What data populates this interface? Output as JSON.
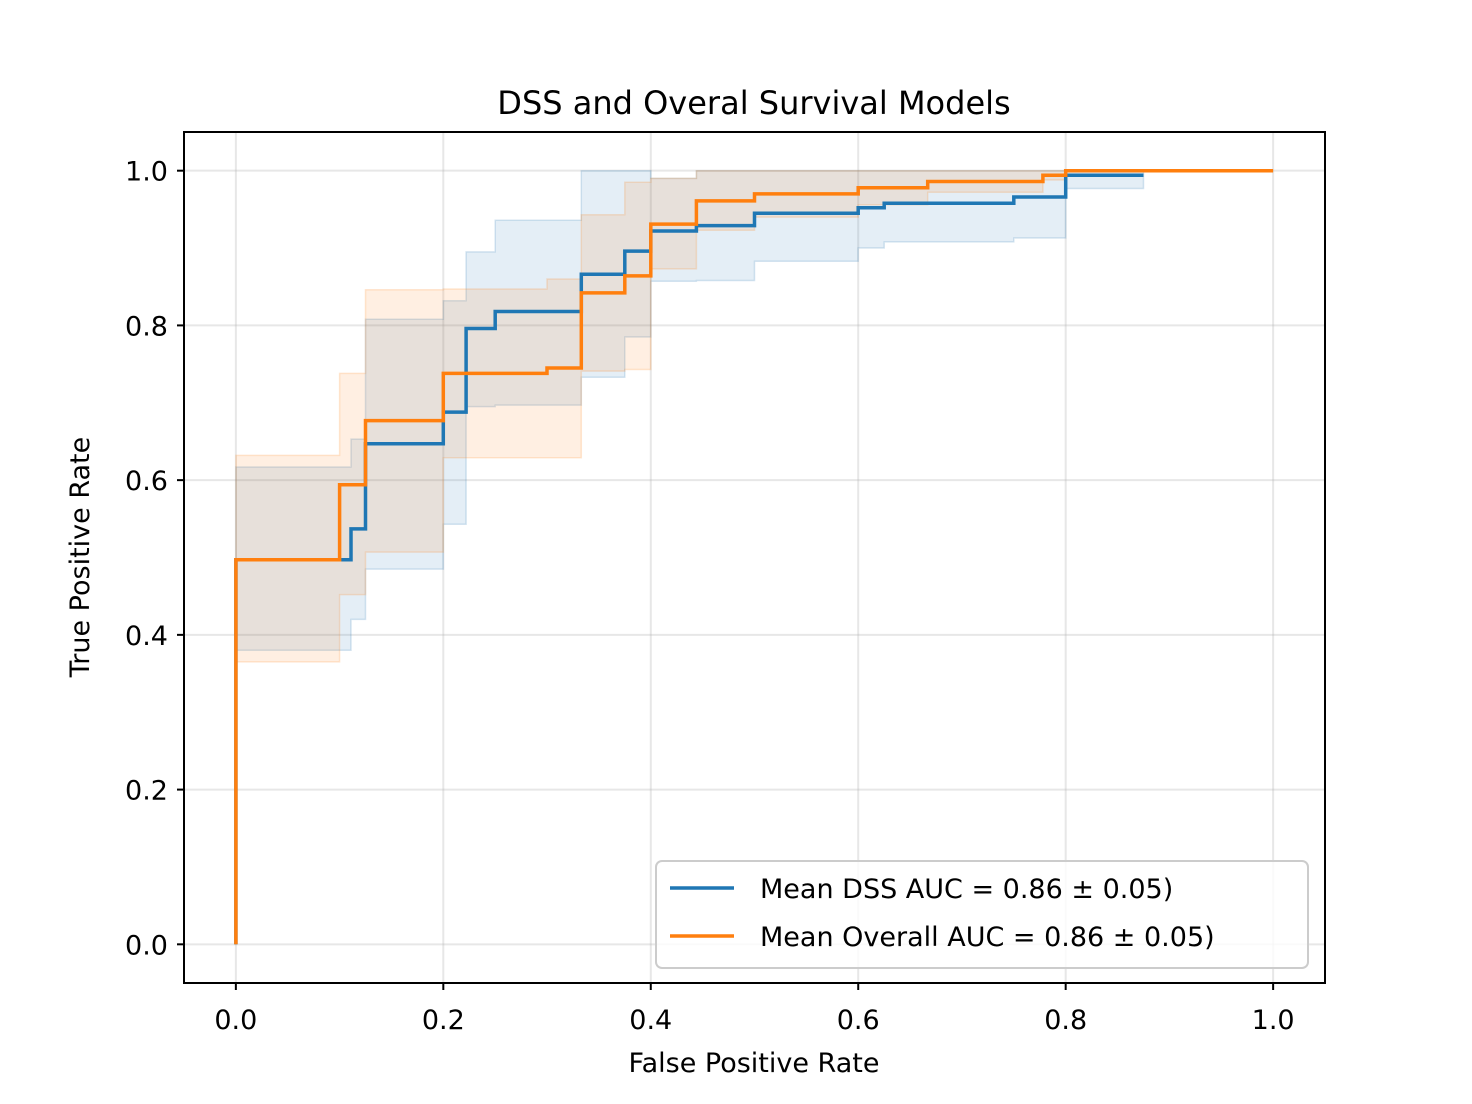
{
  "chart_data": {
    "type": "line",
    "title": "DSS and Overal Survival Models",
    "xlabel": "False Positive Rate",
    "ylabel": "True Positive Rate",
    "xlim": [
      -0.05,
      1.05
    ],
    "ylim": [
      -0.05,
      1.05
    ],
    "xticks": [
      0.0,
      0.2,
      0.4,
      0.6,
      0.8,
      1.0
    ],
    "xtick_labels": [
      "0.0",
      "0.2",
      "0.4",
      "0.6",
      "0.8",
      "1.0"
    ],
    "yticks": [
      0.0,
      0.2,
      0.4,
      0.6,
      0.8,
      1.0
    ],
    "ytick_labels": [
      "0.0",
      "0.2",
      "0.4",
      "0.6",
      "0.8",
      "1.0"
    ],
    "grid": true,
    "legend_position": "lower-right",
    "series": [
      {
        "name": "Mean DSS AUC = 0.86 ± 0.05)",
        "color": "#1f77b4",
        "x": [
          0.0,
          0.0,
          0.111,
          0.111,
          0.125,
          0.125,
          0.2,
          0.2,
          0.222,
          0.222,
          0.25,
          0.25,
          0.333,
          0.333,
          0.375,
          0.375,
          0.4,
          0.4,
          0.444,
          0.444,
          0.5,
          0.5,
          0.6,
          0.6,
          0.625,
          0.625,
          0.75,
          0.75,
          0.8,
          0.8,
          0.875
        ],
        "y": [
          0.0,
          0.497,
          0.497,
          0.537,
          0.537,
          0.647,
          0.647,
          0.688,
          0.688,
          0.796,
          0.796,
          0.818,
          0.818,
          0.866,
          0.866,
          0.896,
          0.896,
          0.922,
          0.922,
          0.929,
          0.929,
          0.945,
          0.945,
          0.952,
          0.952,
          0.958,
          0.958,
          0.966,
          0.966,
          0.994,
          0.994
        ],
        "band_lower": [
          0.0,
          0.38,
          0.38,
          0.42,
          0.42,
          0.485,
          0.485,
          0.543,
          0.543,
          0.695,
          0.695,
          0.697,
          0.697,
          0.733,
          0.733,
          0.785,
          0.785,
          0.857,
          0.857,
          0.858,
          0.858,
          0.883,
          0.883,
          0.9,
          0.9,
          0.908,
          0.908,
          0.913,
          0.913,
          0.977,
          0.977
        ],
        "band_upper": [
          0.0,
          0.617,
          0.617,
          0.653,
          0.653,
          0.808,
          0.808,
          0.832,
          0.832,
          0.895,
          0.895,
          0.936,
          0.936,
          1.0,
          1.0,
          1.0,
          1.0,
          0.99,
          0.99,
          1.0,
          1.0,
          1.0,
          1.0,
          1.0,
          1.0,
          1.0,
          1.0,
          1.0,
          1.0,
          1.0,
          1.0
        ]
      },
      {
        "name": "Mean Overall AUC = 0.86 ± 0.05)",
        "color": "#ff7f0e",
        "x": [
          0.0,
          0.0,
          0.1,
          0.1,
          0.125,
          0.125,
          0.2,
          0.2,
          0.3,
          0.3,
          0.333,
          0.333,
          0.375,
          0.375,
          0.4,
          0.4,
          0.444,
          0.444,
          0.5,
          0.5,
          0.6,
          0.6,
          0.667,
          0.667,
          0.778,
          0.778,
          0.8,
          0.8,
          1.0
        ],
        "y": [
          0.0,
          0.497,
          0.497,
          0.594,
          0.594,
          0.677,
          0.677,
          0.738,
          0.738,
          0.745,
          0.745,
          0.842,
          0.842,
          0.864,
          0.864,
          0.931,
          0.931,
          0.961,
          0.961,
          0.97,
          0.97,
          0.978,
          0.978,
          0.986,
          0.986,
          0.994,
          0.994,
          1.0,
          1.0
        ],
        "band_lower": [
          0.0,
          0.365,
          0.365,
          0.452,
          0.452,
          0.507,
          0.507,
          0.629,
          0.629,
          0.629,
          0.629,
          0.741,
          0.741,
          0.743,
          0.743,
          0.873,
          0.873,
          0.923,
          0.923,
          0.94,
          0.94,
          0.956,
          0.956,
          0.972,
          0.972,
          0.988,
          0.988,
          1.0,
          1.0
        ],
        "band_upper": [
          0.0,
          0.632,
          0.632,
          0.738,
          0.738,
          0.846,
          0.846,
          0.847,
          0.847,
          0.86,
          0.86,
          0.943,
          0.943,
          0.985,
          0.985,
          0.99,
          0.99,
          1.0,
          1.0,
          1.0,
          1.0,
          1.0,
          1.0,
          1.0,
          1.0,
          1.0,
          1.0,
          1.0,
          1.0
        ]
      }
    ]
  }
}
